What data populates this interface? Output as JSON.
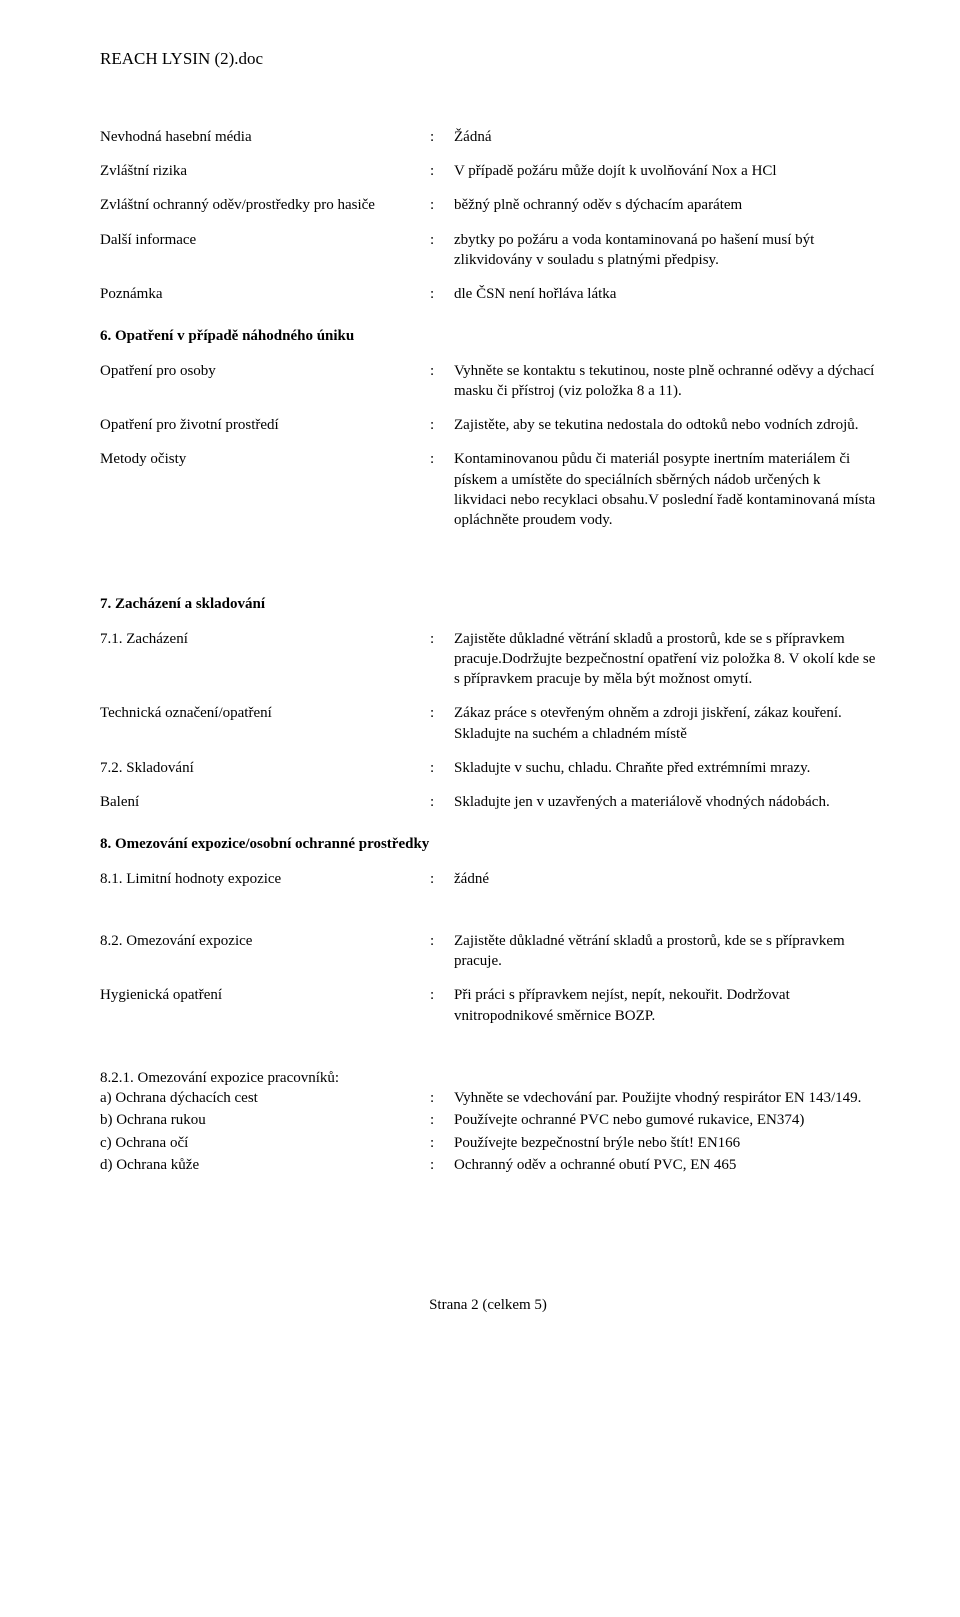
{
  "docTitle": "REACH LYSIN (2).doc",
  "rows": [
    {
      "label": "Nevhodná hasební média",
      "value": "Žádná"
    },
    {
      "label": "Zvláštní rizika",
      "value": "V případě požáru může dojít k uvolňování Nox a HCl"
    },
    {
      "label": "Zvláštní ochranný oděv/prostředky pro hasiče",
      "value": "běžný plně ochranný oděv s dýchacím aparátem"
    },
    {
      "label": "Další informace",
      "value": "zbytky po požáru a voda kontaminovaná po hašení musí být zlikvidovány v souladu s platnými předpisy."
    },
    {
      "label": "Poznámka",
      "value": "dle ČSN není hořláva látka"
    }
  ],
  "section6": {
    "title": "6. Opatření v případě náhodného úniku",
    "rows": [
      {
        "label": "Opatření pro osoby",
        "value": "Vyhněte se kontaktu s tekutinou, noste plně ochranné oděvy a dýchací masku či přístroj (viz položka 8 a 11)."
      },
      {
        "label": "Opatření pro životní prostředí",
        "value": "Zajistěte, aby se tekutina nedostala do odtoků nebo vodních zdrojů."
      },
      {
        "label": "Metody očisty",
        "value": "Kontaminovanou půdu či materiál posypte inertním materiálem či pískem a umístěte do speciálních sběrných nádob určených k likvidaci nebo recyklaci obsahu.V poslední řadě kontaminovaná místa opláchněte proudem vody."
      }
    ]
  },
  "section7": {
    "title": "7. Zacházení a skladování",
    "rows": [
      {
        "label": "7.1. Zacházení",
        "value": "Zajistěte důkladné větrání skladů a prostorů, kde se s přípravkem pracuje.Dodržujte bezpečnostní opatření viz položka 8. V okolí kde se s přípravkem pracuje by měla být možnost omytí."
      },
      {
        "label": "Technická označení/opatření",
        "value": "Zákaz práce s otevřeným ohněm a zdroji jiskření, zákaz kouření. Skladujte na suchém a chladném místě"
      },
      {
        "label": "7.2. Skladování",
        "value": "Skladujte v suchu, chladu. Chraňte před extrémními mrazy."
      },
      {
        "label": "Balení",
        "value": "Skladujte jen v uzavřených a materiálově vhodných nádobách."
      }
    ]
  },
  "section8": {
    "title": "8. Omezování expozice/osobní ochranné prostředky",
    "rows1": [
      {
        "label": "8.1. Limitní hodnoty expozice",
        "value": "žádné"
      }
    ],
    "rows2": [
      {
        "label": "8.2. Omezování expozice",
        "value": "Zajistěte důkladné větrání skladů a prostorů, kde se s přípravkem pracuje."
      },
      {
        "label": "Hygienická opatření",
        "value": "Při práci s přípravkem nejíst, nepít, nekouřit. Dodržovat vnitropodnikové směrnice BOZP."
      }
    ],
    "sub821": {
      "lead": "8.2.1. Omezování expozice pracovníků:",
      "items": [
        {
          "label": "a) Ochrana dýchacích cest",
          "value": "Vyhněte se vdechování par. Použijte vhodný respirátor EN 143/149."
        },
        {
          "label": "b) Ochrana rukou",
          "value": "Používejte ochranné PVC nebo gumové rukavice, EN374)"
        },
        {
          "label": "c) Ochrana očí",
          "value": "Používejte bezpečnostní brýle nebo štít! EN166"
        },
        {
          "label": "d) Ochrana kůže",
          "value": "Ochranný oděv a ochranné obutí PVC, EN 465"
        }
      ]
    }
  },
  "footer": "Strana 2 (celkem 5)"
}
